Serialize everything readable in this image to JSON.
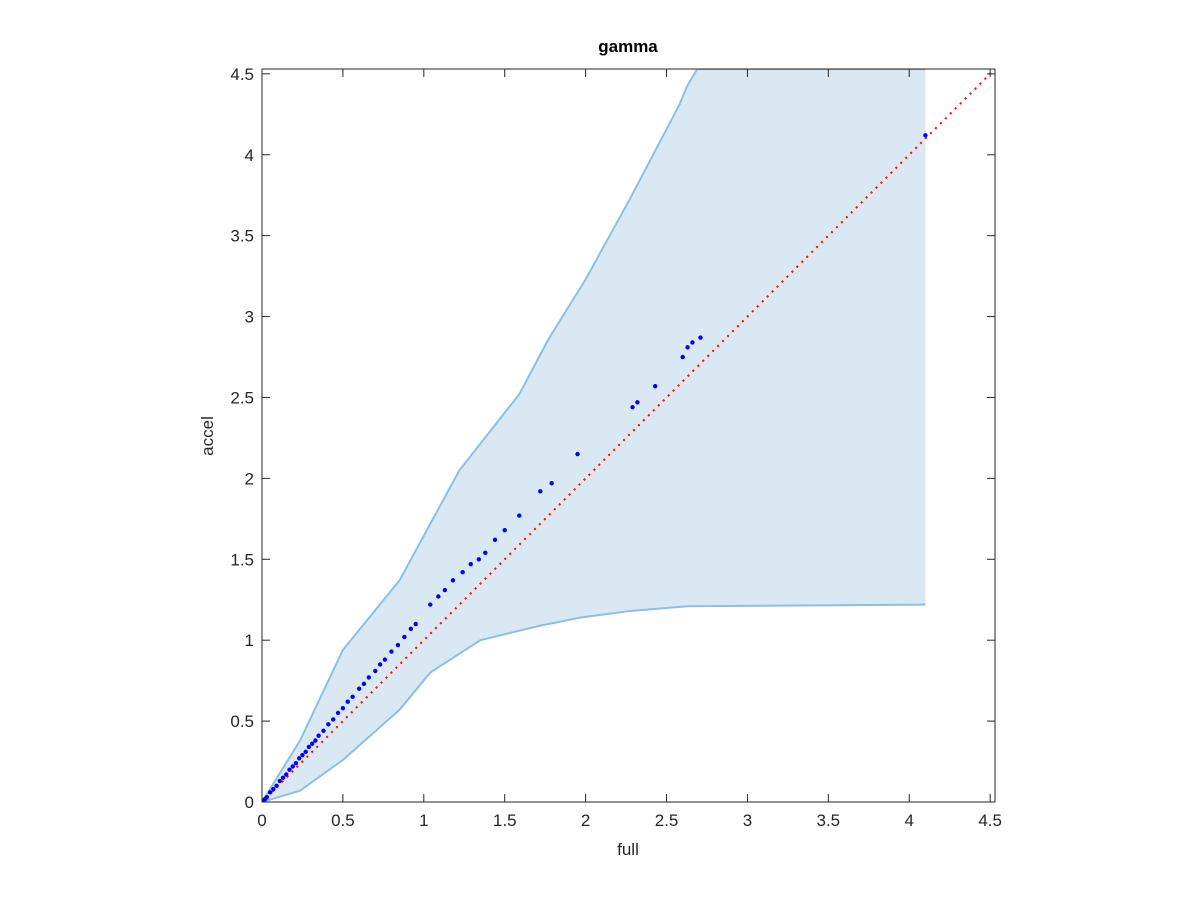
{
  "chart_data": {
    "type": "scatter",
    "title": "gamma",
    "x_label": "full",
    "y_label": "accel",
    "xlim": [
      0,
      4.53
    ],
    "ylim": [
      0,
      4.53
    ],
    "xticks": [
      0,
      0.5,
      1,
      1.5,
      2,
      2.5,
      3,
      3.5,
      4,
      4.5
    ],
    "yticks": [
      0,
      0.5,
      1,
      1.5,
      2,
      2.5,
      3,
      3.5,
      4,
      4.5
    ],
    "band_color": "#dae8f4",
    "band_edge_color": "#8dbfe3",
    "band_upper": {
      "x": [
        0,
        0.235,
        0.5,
        0.85,
        1.22,
        1.59,
        1.77,
        2.0,
        2.27,
        2.58,
        2.63,
        2.69,
        4.1
      ],
      "y": [
        0,
        0.38,
        0.94,
        1.37,
        2.05,
        2.52,
        2.86,
        3.23,
        3.72,
        4.31,
        4.43,
        4.53,
        4.53
      ]
    },
    "band_lower": {
      "x": [
        0,
        0.235,
        0.5,
        0.85,
        1.04,
        1.35,
        1.72,
        1.97,
        2.27,
        2.63,
        4.1
      ],
      "y": [
        0,
        0.07,
        0.26,
        0.57,
        0.8,
        1.0,
        1.09,
        1.14,
        1.18,
        1.21,
        1.22
      ]
    },
    "diagonal": {
      "x": [
        0,
        4.53
      ],
      "y": [
        0,
        4.53
      ],
      "color": "#ff0000"
    },
    "points": {
      "color": "#0000ff",
      "x": [
        0.01,
        0.02,
        0.03,
        0.05,
        0.07,
        0.09,
        0.11,
        0.13,
        0.15,
        0.17,
        0.19,
        0.21,
        0.23,
        0.25,
        0.27,
        0.29,
        0.31,
        0.33,
        0.35,
        0.38,
        0.41,
        0.44,
        0.47,
        0.5,
        0.53,
        0.56,
        0.6,
        0.63,
        0.66,
        0.7,
        0.73,
        0.76,
        0.8,
        0.84,
        0.88,
        0.92,
        0.95,
        1.04,
        1.09,
        1.13,
        1.18,
        1.24,
        1.29,
        1.34,
        1.38,
        1.44,
        1.5,
        1.59,
        1.72,
        1.79,
        1.95,
        2.29,
        2.32,
        2.43,
        2.6,
        2.63,
        2.66,
        2.71,
        4.1
      ],
      "y": [
        0.01,
        0.02,
        0.03,
        0.06,
        0.08,
        0.1,
        0.13,
        0.15,
        0.17,
        0.2,
        0.22,
        0.24,
        0.27,
        0.29,
        0.31,
        0.34,
        0.36,
        0.38,
        0.41,
        0.44,
        0.48,
        0.51,
        0.55,
        0.58,
        0.62,
        0.65,
        0.7,
        0.73,
        0.77,
        0.81,
        0.85,
        0.88,
        0.93,
        0.97,
        1.02,
        1.07,
        1.1,
        1.22,
        1.27,
        1.31,
        1.37,
        1.42,
        1.47,
        1.5,
        1.54,
        1.62,
        1.68,
        1.77,
        1.92,
        1.97,
        2.15,
        2.44,
        2.47,
        2.57,
        2.75,
        2.81,
        2.84,
        2.87,
        4.12
      ]
    }
  }
}
